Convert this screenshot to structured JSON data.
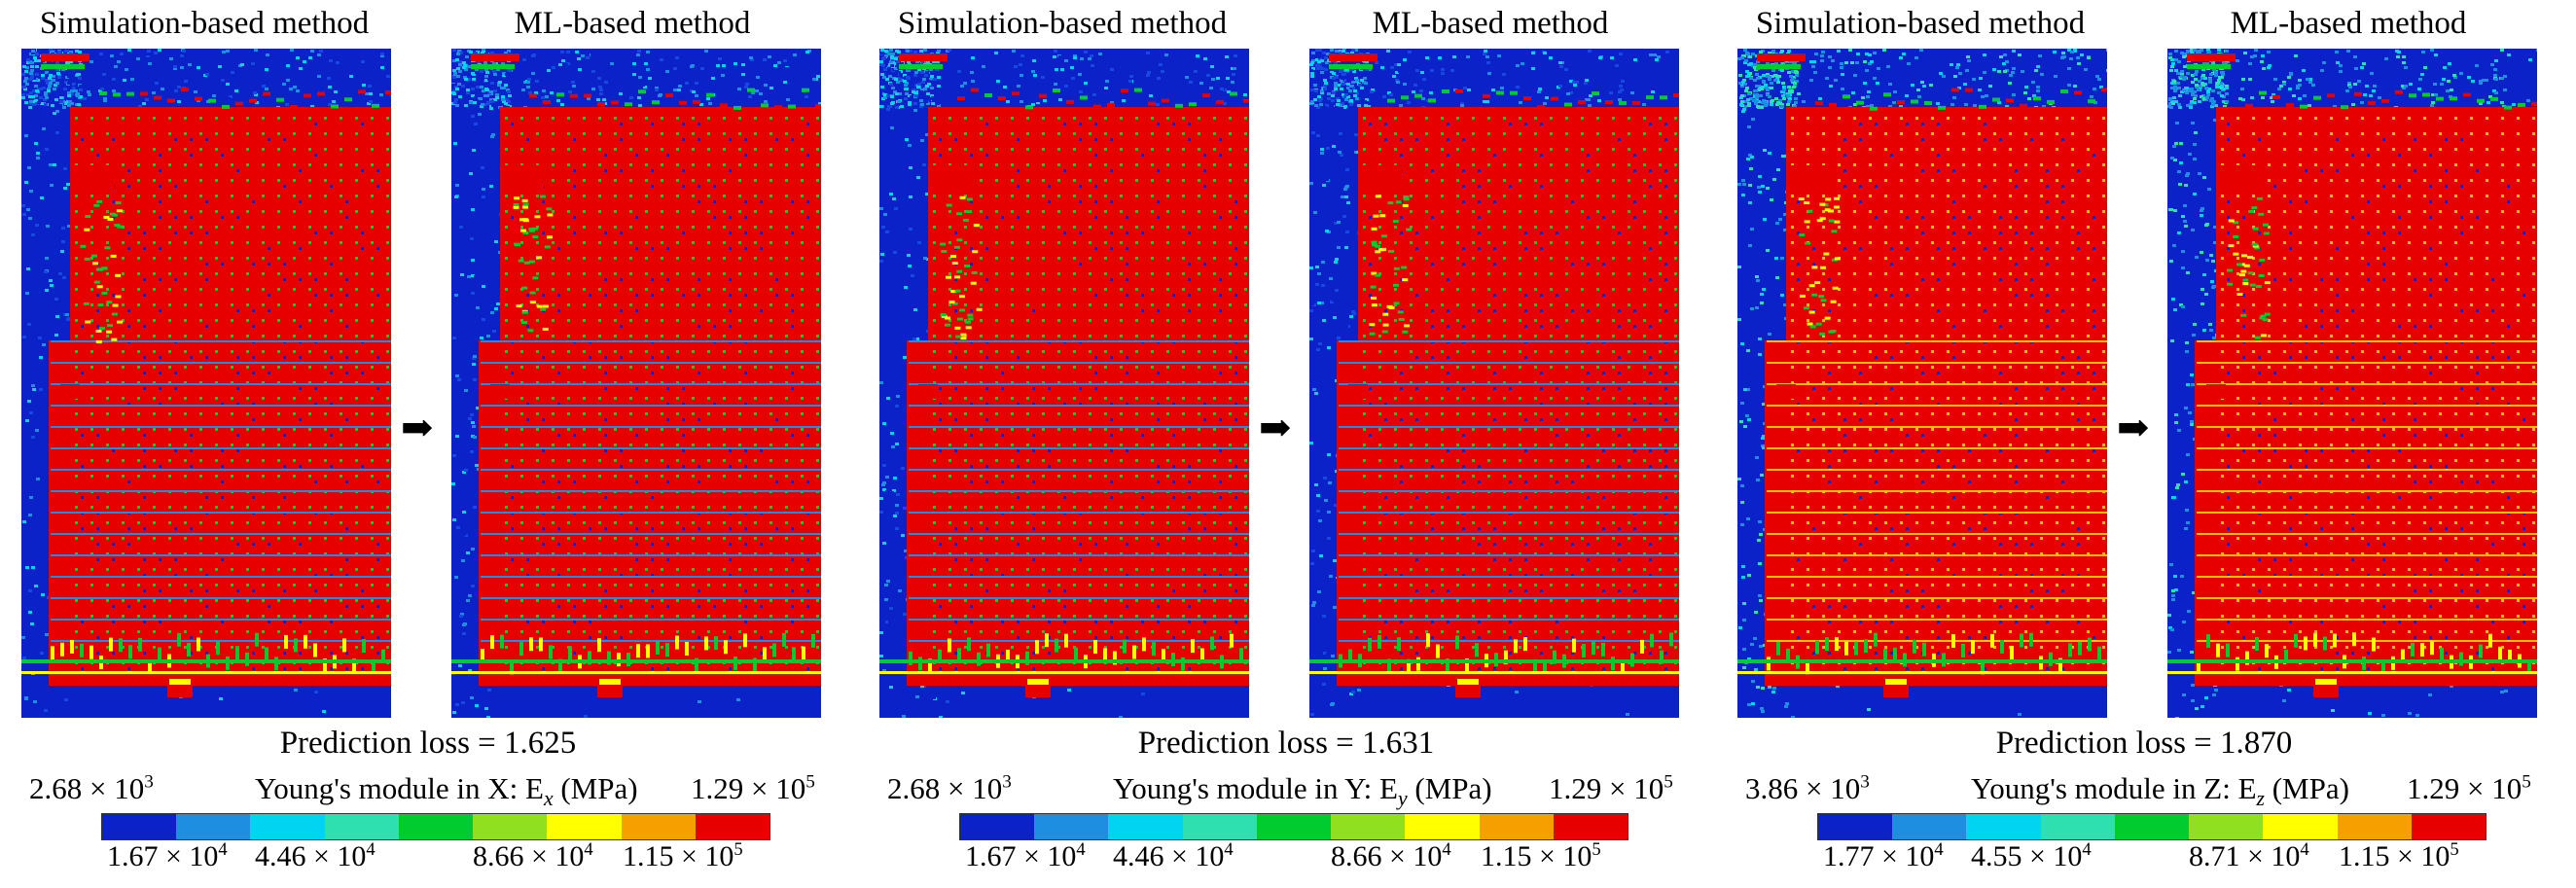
{
  "groups": [
    {
      "left_title": "Simulation-based method",
      "right_title": "ML-based method",
      "loss_text": "Prediction loss = 1.625",
      "cb_min": "2.68 × 10",
      "cb_min_exp": "3",
      "cb_label_pre": "Young's module in X: E",
      "cb_label_sub": "x",
      "cb_label_post": " (MPa)",
      "cb_max": "1.29 × 10",
      "cb_max_exp": "5",
      "ticks": [
        {
          "base": "1.67 × 10",
          "exp": "4"
        },
        {
          "base": "4.46 × 10",
          "exp": "4"
        },
        {
          "base": "8.66 × 10",
          "exp": "4"
        },
        {
          "base": "1.15 × 10",
          "exp": "5"
        }
      ],
      "arrow_icon": "right-arrow-icon"
    },
    {
      "left_title": "Simulation-based method",
      "right_title": "ML-based method",
      "loss_text": "Prediction loss = 1.631",
      "cb_min": "2.68 × 10",
      "cb_min_exp": "3",
      "cb_label_pre": "Young's module in Y: E",
      "cb_label_sub": "y",
      "cb_label_post": " (MPa)",
      "cb_max": "1.29 × 10",
      "cb_max_exp": "5",
      "ticks": [
        {
          "base": "1.67 × 10",
          "exp": "4"
        },
        {
          "base": "4.46 × 10",
          "exp": "4"
        },
        {
          "base": "8.66 × 10",
          "exp": "4"
        },
        {
          "base": "1.15 × 10",
          "exp": "5"
        }
      ],
      "arrow_icon": "right-arrow-icon"
    },
    {
      "left_title": "Simulation-based method",
      "right_title": "ML-based method",
      "loss_text": "Prediction loss = 1.870",
      "cb_min": "3.86 × 10",
      "cb_min_exp": "3",
      "cb_label_pre": "Young's module in Z: E",
      "cb_label_sub": "z",
      "cb_label_post": " (MPa)",
      "cb_max": "1.29 × 10",
      "cb_max_exp": "5",
      "ticks": [
        {
          "base": "1.77 × 10",
          "exp": "4"
        },
        {
          "base": "4.55 × 10",
          "exp": "4"
        },
        {
          "base": "8.71 × 10",
          "exp": "4"
        },
        {
          "base": "1.15 × 10",
          "exp": "5"
        }
      ],
      "arrow_icon": "right-arrow-icon"
    }
  ],
  "colorbar_colors": [
    "#0a22c8",
    "#1e8fe0",
    "#00d4f0",
    "#2ee0b0",
    "#00cc30",
    "#90e020",
    "#ffff00",
    "#f5a000",
    "#e60000"
  ],
  "arrow_glyph": "➡"
}
